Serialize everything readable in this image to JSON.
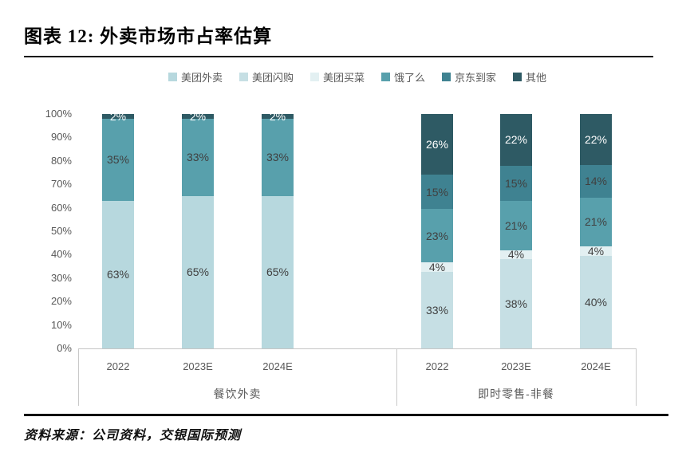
{
  "page": {
    "title": "图表 12: 外卖市场市占率估算",
    "source": "资料来源：公司资料，交银国际预测"
  },
  "chart_data": {
    "type": "bar",
    "subtype": "stacked-100-percent",
    "title": "外卖市场市占率估算",
    "unit": "%",
    "legend_position": "top",
    "grid": false,
    "y_axis": {
      "min": 0,
      "max": 100,
      "step": 10,
      "tick_labels": [
        "0%",
        "10%",
        "20%",
        "30%",
        "40%",
        "50%",
        "60%",
        "70%",
        "80%",
        "90%",
        "100%"
      ]
    },
    "groups": [
      {
        "label": "餐饮外卖",
        "categories": [
          "2022",
          "2023E",
          "2024E"
        ]
      },
      {
        "label": "即时零售-非餐",
        "categories": [
          "2022",
          "2023E",
          "2024E"
        ]
      }
    ],
    "series": [
      {
        "name": "美团外卖",
        "color": "#b7d8de",
        "values": [
          63,
          65,
          65,
          null,
          null,
          null
        ]
      },
      {
        "name": "美团闪购",
        "color": "#c6dfe4",
        "values": [
          null,
          null,
          null,
          33,
          38,
          40
        ]
      },
      {
        "name": "美团买菜",
        "color": "#e3f0f2",
        "values": [
          null,
          null,
          null,
          4,
          4,
          4
        ]
      },
      {
        "name": "饿了么",
        "color": "#58a0ac",
        "values": [
          35,
          33,
          33,
          23,
          21,
          21
        ]
      },
      {
        "name": "京东到家",
        "color": "#3f8291",
        "values": [
          null,
          null,
          null,
          15,
          15,
          14
        ]
      },
      {
        "name": "其他",
        "color": "#2e5a64",
        "label_color": "#ffffff",
        "values": [
          2,
          2,
          2,
          26,
          22,
          22
        ]
      }
    ],
    "data_label_suffix": "%"
  }
}
